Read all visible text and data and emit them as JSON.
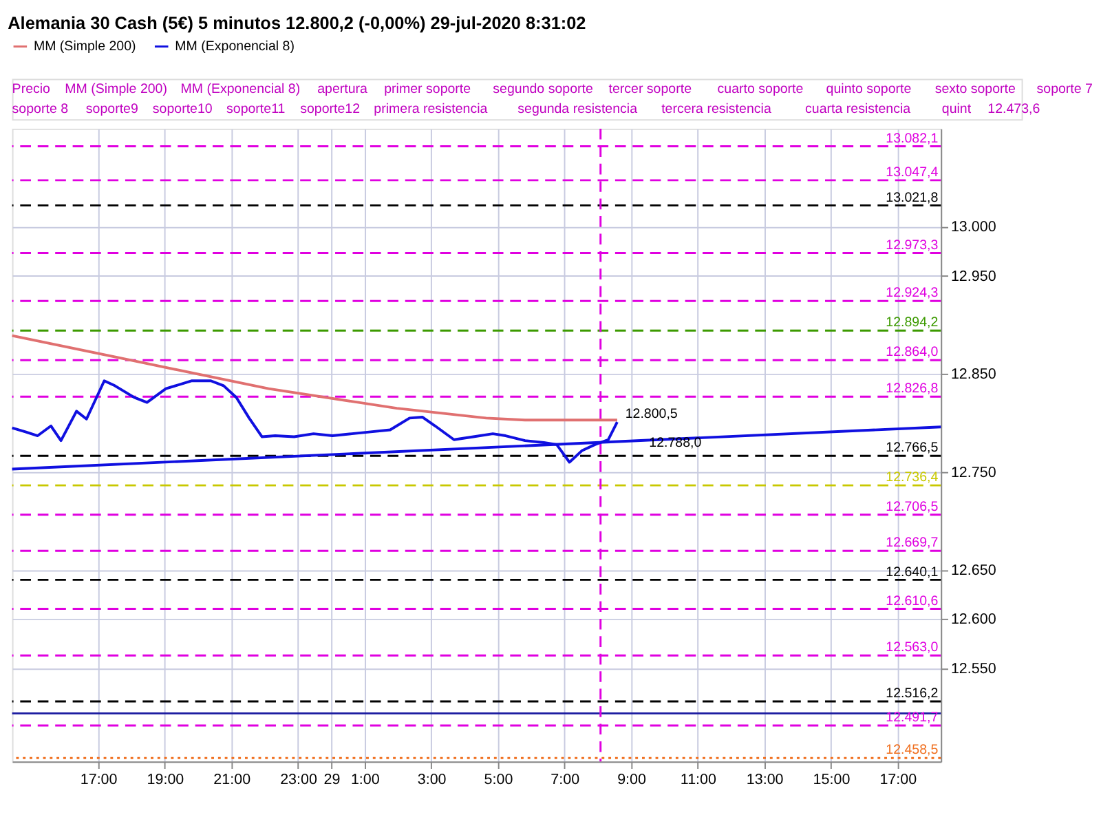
{
  "chart_data": {
    "type": "line",
    "title": "Alemania 30 Cash (5€)   5 minutos   12.800,2 (-0,00%)   29-jul-2020 8:31:02",
    "xlim": [
      "2020-07-28T14:25",
      "2020-07-29T18:18"
    ],
    "xticks": [
      {
        "value": "2020-07-28T17:00",
        "label": "17:00"
      },
      {
        "value": "2020-07-28T19:00",
        "label": "19:00"
      },
      {
        "value": "2020-07-28T21:00",
        "label": "21:00"
      },
      {
        "value": "2020-07-28T23:00",
        "label": "23:00"
      },
      {
        "value": "2020-07-29T00:00",
        "label": "29"
      },
      {
        "value": "2020-07-29T01:00",
        "label": "1:00"
      },
      {
        "value": "2020-07-29T03:00",
        "label": "3:00"
      },
      {
        "value": "2020-07-29T05:00",
        "label": "5:00"
      },
      {
        "value": "2020-07-29T07:00",
        "label": "7:00"
      },
      {
        "value": "2020-07-29T09:00",
        "label": "9:00"
      },
      {
        "value": "2020-07-29T11:00",
        "label": "11:00"
      },
      {
        "value": "2020-07-29T13:00",
        "label": "13:00"
      },
      {
        "value": "2020-07-29T15:00",
        "label": "15:00"
      },
      {
        "value": "2020-07-29T17:00",
        "label": "17:00"
      }
    ],
    "ylim": [
      12455,
      13100
    ],
    "yticks": [
      {
        "value": 12550,
        "label": "12.550"
      },
      {
        "value": 12600,
        "label": "12.600"
      },
      {
        "value": 12650,
        "label": "12.650"
      },
      {
        "value": 12750,
        "label": "12.750"
      },
      {
        "value": 12850,
        "label": "12.850"
      },
      {
        "value": 12950,
        "label": "12.950"
      },
      {
        "value": 13000,
        "label": "13.000"
      }
    ],
    "grid": true,
    "series": [
      {
        "name": "MM (Simple 200)",
        "color": "#e07070",
        "x": [
          "2020-07-28T14:25",
          "2020-07-28T18:16",
          "2020-07-28T22:07",
          "2020-07-29T01:58",
          "2020-07-29T04:39",
          "2020-07-29T05:49",
          "2020-07-29T08:35"
        ],
        "values": [
          12889,
          12862,
          12835,
          12815,
          12805,
          12803,
          12803
        ]
      },
      {
        "name": "MM (Exponencial 8)",
        "color": "#1010e0",
        "x": [
          "2020-07-28T14:25",
          "2020-07-28T14:49",
          "2020-07-28T15:11",
          "2020-07-28T15:35",
          "2020-07-28T15:53",
          "2020-07-28T16:21",
          "2020-07-28T16:39",
          "2020-07-28T17:11",
          "2020-07-28T17:30",
          "2020-07-28T18:05",
          "2020-07-28T18:28",
          "2020-07-28T19:02",
          "2020-07-28T19:49",
          "2020-07-28T20:23",
          "2020-07-28T20:46",
          "2020-07-28T21:09",
          "2020-07-28T21:32",
          "2020-07-28T21:55",
          "2020-07-28T22:19",
          "2020-07-28T22:53",
          "2020-07-28T23:28",
          "2020-07-29T00:02",
          "2020-07-29T00:37",
          "2020-07-29T01:11",
          "2020-07-29T01:46",
          "2020-07-29T02:21",
          "2020-07-29T02:44",
          "2020-07-29T03:07",
          "2020-07-29T03:41",
          "2020-07-29T04:16",
          "2020-07-29T04:51",
          "2020-07-29T05:14",
          "2020-07-29T05:49",
          "2020-07-29T06:23",
          "2020-07-29T06:46",
          "2020-07-29T07:09",
          "2020-07-29T07:32",
          "2020-07-29T07:55",
          "2020-07-29T08:19",
          "2020-07-29T08:35"
        ],
        "values": [
          12795,
          12791,
          12787,
          12797,
          12782,
          12812,
          12804,
          12843,
          12838,
          12826,
          12821,
          12835,
          12843,
          12843,
          12838,
          12826,
          12805,
          12786,
          12787,
          12786,
          12789,
          12787,
          12789,
          12791,
          12793,
          12805,
          12806,
          12797,
          12783,
          12786,
          12789,
          12787,
          12782,
          12780,
          12778,
          12760,
          12772,
          12778,
          12783,
          12801
        ]
      },
      {
        "color": "#1010e0",
        "x": [
          "2020-07-28T14:25",
          "2020-07-29T18:18"
        ],
        "values": [
          12753,
          12796
        ]
      }
    ],
    "ref_lines": [
      {
        "axis": "y",
        "value": 13082.1,
        "label": "13.082,1",
        "color": "#e000e0",
        "line_style": "dashed"
      },
      {
        "axis": "y",
        "value": 13047.4,
        "label": "13.047,4",
        "color": "#e000e0",
        "line_style": "dashed"
      },
      {
        "axis": "y",
        "value": 13021.8,
        "label": "13.021,8",
        "color": "#000000",
        "line_style": "dashed"
      },
      {
        "axis": "y",
        "value": 12973.3,
        "label": "12.973,3",
        "color": "#e000e0",
        "line_style": "dashed"
      },
      {
        "axis": "y",
        "value": 12924.3,
        "label": "12.924,3",
        "color": "#e000e0",
        "line_style": "dashed"
      },
      {
        "axis": "y",
        "value": 12894.2,
        "label": "12.894,2",
        "color": "#3c9a00",
        "line_style": "dashed"
      },
      {
        "axis": "y",
        "value": 12864.0,
        "label": "12.864,0",
        "color": "#e000e0",
        "line_style": "dashed"
      },
      {
        "axis": "y",
        "value": 12826.8,
        "label": "12.826,8",
        "color": "#e000e0",
        "line_style": "dashed"
      },
      {
        "axis": "y",
        "value": 12766.5,
        "label": "12.766,5",
        "color": "#000000",
        "line_style": "dashed"
      },
      {
        "axis": "y",
        "value": 12736.4,
        "label": "12.736,4",
        "color": "#c8c800",
        "line_style": "dashed"
      },
      {
        "axis": "y",
        "value": 12706.5,
        "label": "12.706,5",
        "color": "#e000e0",
        "line_style": "dashed"
      },
      {
        "axis": "y",
        "value": 12669.7,
        "label": "12.669,7",
        "color": "#e000e0",
        "line_style": "dashed"
      },
      {
        "axis": "y",
        "value": 12640.1,
        "label": "12.640,1",
        "color": "#000000",
        "line_style": "dashed"
      },
      {
        "axis": "y",
        "value": 12610.6,
        "label": "12.610,6",
        "color": "#e000e0",
        "line_style": "dashed"
      },
      {
        "axis": "y",
        "value": 12563.0,
        "label": "12.563,0",
        "color": "#e000e0",
        "line_style": "dashed"
      },
      {
        "axis": "y",
        "value": 12516.2,
        "label": "12.516,2",
        "color": "#000000",
        "line_style": "dashed"
      },
      {
        "axis": "y",
        "value": 12504,
        "color": "#1a1aa0",
        "line_style": "solid"
      },
      {
        "axis": "y",
        "value": 12491.7,
        "label": "12.491,7",
        "color": "#e000e0",
        "line_style": "dashed"
      },
      {
        "axis": "y",
        "value": 12458.5,
        "label": "12.458,5",
        "color": "#f07020",
        "line_style": "dotted"
      },
      {
        "axis": "x",
        "value": "2020-07-29T08:05",
        "color": "#e000e0",
        "line_style": "dashed"
      }
    ],
    "annotations": [
      "Precio",
      "MM (Simple 200)",
      "MM (Exponencial 8)",
      "apertura",
      "primer soporte",
      "segundo soporte",
      "tercer soporte",
      "cuarto soporte",
      "quinto soporte",
      "sexto soporte",
      "soporte 7",
      "soporte 8",
      "soporte9",
      "soporte10",
      "soporte11",
      "soporte12",
      "primera resistencia",
      "segunda resistencia",
      "tercera resistencia",
      "cuarta resistencia",
      "quint",
      {
        "text": "12.800,5",
        "x": "2020-07-29T08:35",
        "y": 12801
      },
      {
        "text": "12.788,0",
        "x": "2020-07-29T09:18",
        "y": 12788.0
      },
      "12.473,6"
    ],
    "legend": "top left"
  }
}
